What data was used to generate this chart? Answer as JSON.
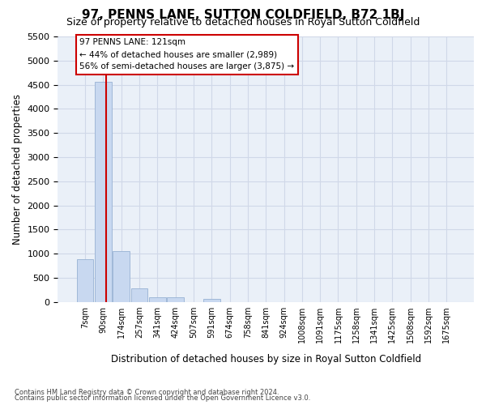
{
  "title": "97, PENNS LANE, SUTTON COLDFIELD, B72 1BJ",
  "subtitle": "Size of property relative to detached houses in Royal Sutton Coldfield",
  "xlabel": "Distribution of detached houses by size in Royal Sutton Coldfield",
  "ylabel": "Number of detached properties",
  "footnote1": "Contains HM Land Registry data © Crown copyright and database right 2024.",
  "footnote2": "Contains public sector information licensed under the Open Government Licence v3.0.",
  "annotation_line1": "97 PENNS LANE: 121sqm",
  "annotation_line2": "← 44% of detached houses are smaller (2,989)",
  "annotation_line3": "56% of semi-detached houses are larger (3,875) →",
  "bin_labels": [
    "7sqm",
    "90sqm",
    "174sqm",
    "257sqm",
    "341sqm",
    "424sqm",
    "507sqm",
    "591sqm",
    "674sqm",
    "758sqm",
    "841sqm",
    "924sqm",
    "1008sqm",
    "1091sqm",
    "1175sqm",
    "1258sqm",
    "1341sqm",
    "1425sqm",
    "1508sqm",
    "1592sqm",
    "1675sqm"
  ],
  "bar_values": [
    880,
    4560,
    1060,
    280,
    90,
    90,
    0,
    60,
    0,
    0,
    0,
    0,
    0,
    0,
    0,
    0,
    0,
    0,
    0,
    0,
    0
  ],
  "bar_color": "#c8d8f0",
  "bar_edge_color": "#a0b8d8",
  "red_line_x": 1.15,
  "ylim_max": 5500,
  "yticks": [
    0,
    500,
    1000,
    1500,
    2000,
    2500,
    3000,
    3500,
    4000,
    4500,
    5000,
    5500
  ],
  "grid_color": "#d0d8e8",
  "background_color": "#eaf0f8",
  "title_fontsize": 11,
  "subtitle_fontsize": 9,
  "annotation_box_facecolor": "#ffffff",
  "annotation_box_edgecolor": "#cc0000",
  "red_line_color": "#cc0000"
}
